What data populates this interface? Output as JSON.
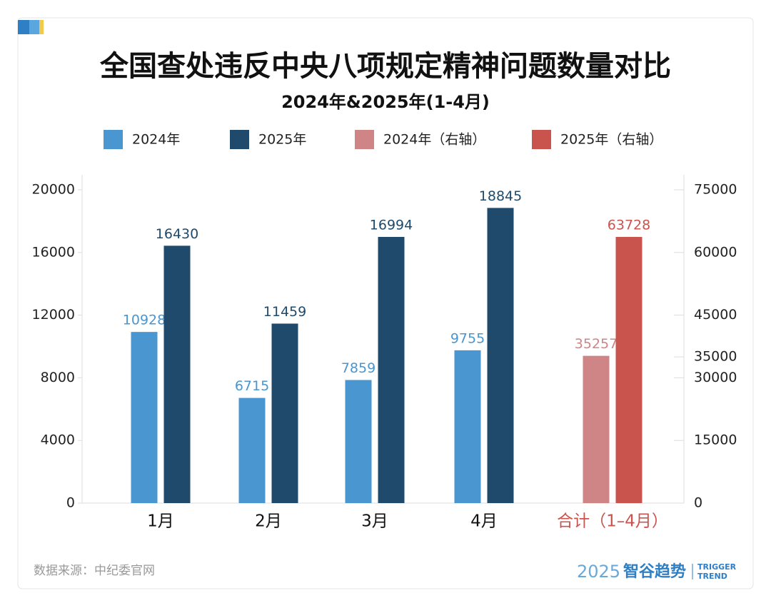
{
  "chart_data": {
    "type": "bar",
    "title": "全国查处违反中央八项规定精神问题数量对比",
    "subtitle": "2024年&2025年(1-4月)",
    "categories": [
      "1月",
      "2月",
      "3月",
      "4月",
      "合计（1–4月）"
    ],
    "series": [
      {
        "name": "2024年",
        "color": "#4a96d0",
        "values": [
          10928,
          6715,
          7859,
          9755,
          null
        ]
      },
      {
        "name": "2025年",
        "color": "#1f4a6b",
        "values": [
          16430,
          11459,
          16994,
          18845,
          null
        ]
      },
      {
        "name": "2024年（右轴）",
        "color": "#cf8585",
        "axis": "y2",
        "values": [
          null,
          null,
          null,
          null,
          35257
        ]
      },
      {
        "name": "2025年（右轴）",
        "color": "#c9544e",
        "axis": "y2",
        "values": [
          null,
          null,
          null,
          null,
          63728
        ]
      }
    ],
    "ylim": [
      0,
      20000
    ],
    "yticks": [
      0,
      4000,
      8000,
      12000,
      16000,
      20000
    ],
    "y2lim": [
      0,
      75000
    ],
    "y2ticks": [
      0,
      15000,
      30000,
      35000,
      45000,
      60000,
      75000
    ],
    "legend": "top",
    "source": "数据来源：中纪委官网",
    "logo": {
      "year": "2025",
      "name": "智谷趋势",
      "en1": "TRIGGER",
      "en2": "TREND"
    }
  }
}
